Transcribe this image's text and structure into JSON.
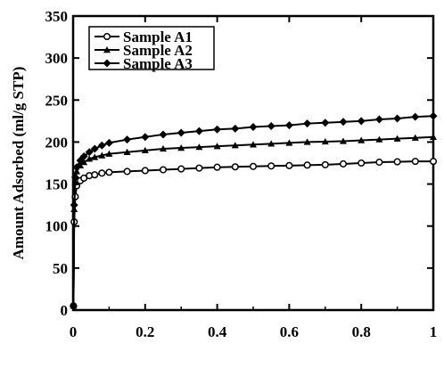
{
  "chart_data": {
    "type": "line",
    "title": "",
    "xlabel": "",
    "ylabel": "Amount Adsorbed (ml/g  STP)",
    "xlim": [
      0,
      1
    ],
    "ylim": [
      0,
      350
    ],
    "xticks": [
      0,
      0.2,
      0.4,
      0.6,
      0.8,
      1
    ],
    "xtick_labels": [
      "0",
      "0.2",
      "0.4",
      "0.6",
      "0.8",
      "1"
    ],
    "yticks": [
      0,
      50,
      100,
      150,
      200,
      250,
      300,
      350
    ],
    "ytick_labels": [
      "0",
      "50",
      "100",
      "150",
      "200",
      "250",
      "300",
      "350"
    ],
    "grid": false,
    "legend": {
      "position": "top-left",
      "boxed": true
    },
    "series": [
      {
        "name": "Sample A1",
        "marker": "open-circle",
        "color": "#000000",
        "x": [
          0.001,
          0.003,
          0.006,
          0.01,
          0.02,
          0.03,
          0.045,
          0.06,
          0.08,
          0.1,
          0.15,
          0.2,
          0.25,
          0.3,
          0.35,
          0.4,
          0.45,
          0.5,
          0.55,
          0.6,
          0.65,
          0.7,
          0.75,
          0.8,
          0.85,
          0.9,
          0.95,
          1.0
        ],
        "y": [
          5,
          105,
          135,
          148,
          154,
          157,
          160,
          161,
          163,
          164,
          165,
          166,
          167,
          168,
          169,
          170,
          170.5,
          171,
          171.5,
          172,
          172.5,
          173,
          174,
          175,
          176,
          176.5,
          177,
          177
        ]
      },
      {
        "name": "Sample A2",
        "marker": "filled-triangle",
        "color": "#000000",
        "x": [
          0.001,
          0.003,
          0.006,
          0.01,
          0.02,
          0.03,
          0.045,
          0.06,
          0.08,
          0.1,
          0.15,
          0.2,
          0.25,
          0.3,
          0.35,
          0.4,
          0.45,
          0.5,
          0.55,
          0.6,
          0.65,
          0.7,
          0.75,
          0.8,
          0.85,
          0.9,
          0.95,
          1.0
        ],
        "y": [
          5,
          120,
          152,
          165,
          172,
          176,
          180,
          182,
          184,
          186,
          188,
          190,
          192,
          193,
          194,
          195,
          196,
          197,
          198,
          199,
          200,
          200.5,
          201,
          202,
          203,
          204,
          205,
          206
        ]
      },
      {
        "name": "Sample A3",
        "marker": "filled-diamond",
        "color": "#000000",
        "x": [
          0.001,
          0.003,
          0.006,
          0.01,
          0.02,
          0.03,
          0.045,
          0.06,
          0.08,
          0.1,
          0.15,
          0.2,
          0.25,
          0.3,
          0.35,
          0.4,
          0.45,
          0.5,
          0.55,
          0.6,
          0.65,
          0.7,
          0.75,
          0.8,
          0.85,
          0.9,
          0.95,
          1.0
        ],
        "y": [
          5,
          125,
          158,
          170,
          178,
          183,
          188,
          192,
          196,
          199,
          203,
          206,
          209,
          211,
          213,
          215,
          216,
          218,
          219,
          220,
          222,
          223,
          224,
          225,
          227,
          228,
          230,
          231
        ]
      }
    ]
  }
}
